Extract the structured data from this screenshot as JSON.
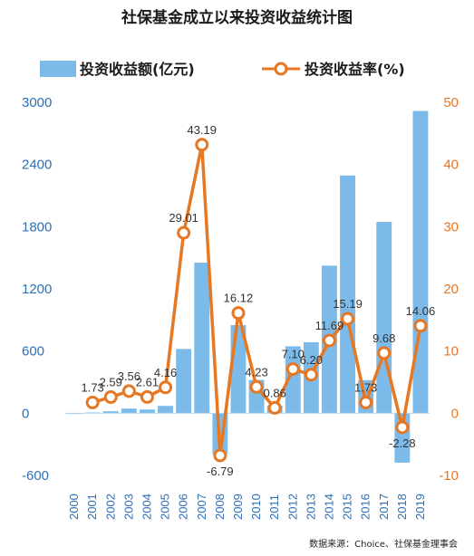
{
  "chart_data": {
    "type": "bar",
    "title": "社保基金成立以来投资收益统计图",
    "categories": [
      "2000",
      "2001",
      "2002",
      "2003",
      "2004",
      "2005",
      "2006",
      "2007",
      "2008",
      "2009",
      "2010",
      "2011",
      "2012",
      "2013",
      "2014",
      "2015",
      "2016",
      "2017",
      "2018",
      "2019"
    ],
    "series": [
      {
        "name": "投资收益额(亿元)",
        "type": "bar",
        "axis": "left",
        "color": "#7cbbe9",
        "values": [
          0,
          7,
          19,
          45,
          36,
          71,
          620,
          1453,
          -393,
          850,
          321,
          73,
          646,
          685,
          1424,
          2294,
          319,
          1846,
          -477,
          2917
        ]
      },
      {
        "name": "投资收益率(%)",
        "type": "line",
        "axis": "right",
        "color": "#e87722",
        "values": [
          null,
          1.73,
          2.59,
          3.56,
          2.61,
          4.16,
          29.01,
          43.19,
          -6.79,
          16.12,
          4.23,
          0.86,
          7.1,
          6.2,
          11.69,
          15.19,
          1.73,
          9.68,
          -2.28,
          14.06
        ],
        "labels": [
          "",
          "1.73",
          "2.59",
          "3.56",
          "2.61",
          "4.16",
          "29.01",
          "43.19",
          "-6.79",
          "16.12",
          "4.23",
          "0.86",
          "7.10",
          "6.20",
          "11.69",
          "15.19",
          "1.73",
          "9.68",
          "-2.28",
          "14.06"
        ]
      }
    ],
    "y_left": {
      "ylim": [
        -600,
        3000
      ],
      "ticks": [
        "3000",
        "2400",
        "1800",
        "1200",
        "600",
        "0",
        "-600"
      ],
      "tick_values": [
        3000,
        2400,
        1800,
        1200,
        600,
        0,
        -600
      ]
    },
    "y_right": {
      "ylim": [
        -10,
        50
      ],
      "ticks": [
        "50",
        "40",
        "30",
        "20",
        "10",
        "0",
        "-10"
      ],
      "tick_values": [
        50,
        40,
        30,
        20,
        10,
        0,
        -10
      ]
    },
    "legend": {
      "placement": "top",
      "bar_label": "投资收益额(亿元)",
      "line_label": "投资收益率(%)"
    },
    "grid": false,
    "source": "数据来源：Choice、社保基金理事会"
  },
  "colors": {
    "bar": "#7cbbe9",
    "line": "#e87722",
    "left_axis_text": "#2e6fb5",
    "right_axis_text": "#e87722"
  }
}
